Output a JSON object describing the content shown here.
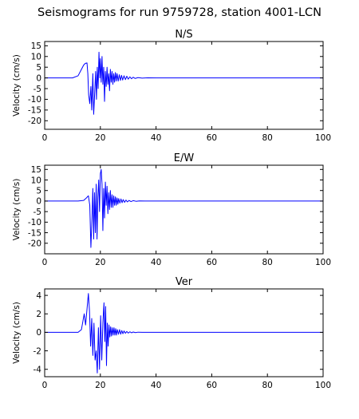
{
  "figure": {
    "suptitle": "Seismograms for run 9759728, station 4001-LCN"
  },
  "chart_data": [
    {
      "type": "line",
      "title": "N/S",
      "xlabel": "",
      "ylabel": "Velocity (cm/s)",
      "xlim": [
        0,
        100
      ],
      "ylim": [
        -24,
        17
      ],
      "xticks": [
        0,
        20,
        40,
        60,
        80,
        100
      ],
      "yticks": [
        15,
        10,
        5,
        0,
        -5,
        -10,
        -15,
        -20
      ],
      "line_color": "#0000ff",
      "grid": false,
      "series": [
        {
          "x": [
            0,
            10,
            12,
            13,
            14,
            14.6,
            15.2,
            15.5,
            15.8,
            16.2,
            16.6,
            16.9,
            17.3,
            17.6,
            18.0,
            18.3,
            18.6,
            18.9,
            19.2,
            19.5,
            19.8,
            20.0,
            20.3,
            20.6,
            20.9,
            21.2,
            21.5,
            21.8,
            22.1,
            22.4,
            22.7,
            23.0,
            23.3,
            23.6,
            23.9,
            24.2,
            24.5,
            24.8,
            25.1,
            25.4,
            25.7,
            26.0,
            26.4,
            26.8,
            27.2,
            27.6,
            28.0,
            28.5,
            29.0,
            29.5,
            30.0,
            30.6,
            31.2,
            31.8,
            32.5,
            33.5,
            35.0,
            37.0,
            40.0,
            100
          ],
          "y": [
            0,
            0,
            1,
            3.5,
            6,
            6.8,
            7,
            2,
            -8,
            -12,
            -4,
            -15,
            2,
            -17,
            -6,
            3,
            -10,
            5,
            -5,
            12,
            0,
            9,
            -2,
            10,
            -3,
            5,
            -11,
            3,
            -4,
            5,
            -3,
            2,
            -6,
            4,
            -2,
            3,
            -3,
            2,
            -2,
            2.5,
            -1.5,
            2,
            -1.5,
            1.5,
            -1.2,
            1.2,
            -1,
            1,
            -0.8,
            0.8,
            -0.6,
            0.5,
            -0.4,
            0.3,
            -0.25,
            0.15,
            -0.1,
            0.05,
            0,
            0
          ]
        }
      ]
    },
    {
      "type": "line",
      "title": "E/W",
      "xlabel": "",
      "ylabel": "Velocity (cm/s)",
      "xlim": [
        0,
        100
      ],
      "ylim": [
        -25,
        17
      ],
      "xticks": [
        0,
        20,
        40,
        60,
        80,
        100
      ],
      "yticks": [
        15,
        10,
        5,
        0,
        -5,
        -10,
        -15,
        -20
      ],
      "line_color": "#0000ff",
      "grid": false,
      "series": [
        {
          "x": [
            0,
            12,
            14,
            15,
            15.7,
            16.2,
            16.6,
            17.0,
            17.3,
            17.6,
            17.9,
            18.2,
            18.5,
            18.8,
            19.1,
            19.4,
            19.7,
            20.0,
            20.3,
            20.6,
            20.9,
            21.2,
            21.5,
            21.8,
            22.1,
            22.4,
            22.7,
            23.0,
            23.3,
            23.6,
            23.9,
            24.2,
            24.5,
            24.8,
            25.1,
            25.4,
            25.7,
            26.0,
            26.3,
            26.6,
            27.0,
            27.4,
            27.8,
            28.2,
            28.7,
            29.2,
            29.7,
            30.3,
            31.0,
            31.8,
            32.8,
            34.0,
            36.0,
            38.0,
            40.0,
            100
          ],
          "y": [
            0,
            0,
            0.3,
            1.5,
            2.5,
            -2,
            -22,
            -8,
            6,
            -18,
            4,
            -15,
            8,
            -18,
            2,
            10,
            -5,
            13,
            15,
            8,
            -14,
            6,
            -8,
            9,
            -2,
            7,
            -6,
            4,
            -4,
            5,
            -3,
            3,
            -3,
            2.5,
            -2,
            2,
            -2,
            1.5,
            -1.5,
            1.2,
            -1,
            1,
            -0.8,
            0.7,
            -0.6,
            0.5,
            -0.4,
            0.3,
            -0.25,
            0.2,
            -0.1,
            0.05,
            0,
            0,
            0,
            0
          ]
        }
      ]
    },
    {
      "type": "line",
      "title": "Ver",
      "xlabel": "",
      "ylabel": "Velocity (cm/s)",
      "xlim": [
        0,
        100
      ],
      "ylim": [
        -4.8,
        4.7
      ],
      "xticks": [
        0,
        20,
        40,
        60,
        80,
        100
      ],
      "yticks": [
        4,
        2,
        0,
        -2,
        -4
      ],
      "line_color": "#0000ff",
      "grid": false,
      "series": [
        {
          "x": [
            0,
            12,
            13.2,
            14.2,
            14.7,
            15.2,
            15.7,
            16.1,
            16.5,
            16.9,
            17.3,
            17.7,
            18.1,
            18.5,
            18.9,
            19.3,
            19.7,
            20.1,
            20.5,
            20.9,
            21.3,
            21.6,
            21.9,
            22.2,
            22.5,
            22.8,
            23.1,
            23.4,
            23.7,
            24.0,
            24.3,
            24.6,
            24.9,
            25.2,
            25.5,
            25.8,
            26.1,
            26.5,
            26.9,
            27.3,
            27.7,
            28.1,
            28.5,
            29.0,
            29.5,
            30.0,
            30.6,
            31.2,
            31.8,
            32.6,
            33.5,
            35.0,
            37.0,
            40.0,
            100
          ],
          "y": [
            0,
            0,
            0.3,
            2.0,
            0.8,
            2.5,
            4.2,
            2.3,
            -1.5,
            1.5,
            -2.5,
            1.0,
            -3.0,
            -2.0,
            -4.4,
            0.5,
            -4.0,
            1.8,
            -3.0,
            1.0,
            3.2,
            -1.0,
            2.8,
            -3.6,
            1.0,
            -1.5,
            0.8,
            -0.5,
            0.6,
            -0.4,
            0.5,
            -0.3,
            0.5,
            -0.3,
            0.4,
            -0.3,
            0.3,
            -0.2,
            0.3,
            -0.2,
            0.2,
            -0.15,
            0.15,
            -0.1,
            0.1,
            -0.08,
            0.06,
            -0.05,
            0.04,
            -0.03,
            0.02,
            0,
            0,
            0,
            0
          ]
        }
      ]
    }
  ]
}
